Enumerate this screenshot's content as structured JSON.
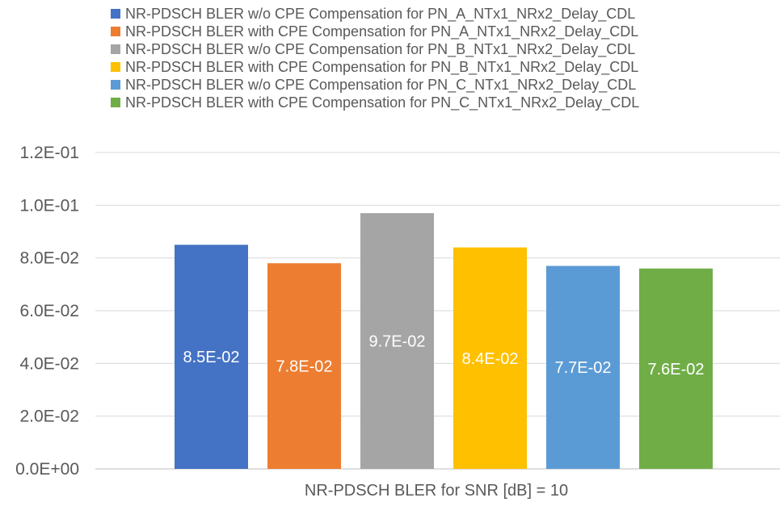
{
  "chart_data": {
    "type": "bar",
    "categories": [
      "NR-PDSCH BLER for SNR [dB] = 10"
    ],
    "series": [
      {
        "name": "NR-PDSCH BLER w/o CPE Compensation for PN_A_NTx1_NRx2_Delay_CDL",
        "values": [
          0.085
        ],
        "label": "8.5E-02",
        "color": "#4472C4"
      },
      {
        "name": "NR-PDSCH BLER with CPE Compensation for PN_A_NTx1_NRx2_Delay_CDL",
        "values": [
          0.078
        ],
        "label": "7.8E-02",
        "color": "#ED7D31"
      },
      {
        "name": "NR-PDSCH BLER w/o CPE Compensation for PN_B_NTx1_NRx2_Delay_CDL",
        "values": [
          0.097
        ],
        "label": "9.7E-02",
        "color": "#A5A5A5"
      },
      {
        "name": "NR-PDSCH BLER with CPE Compensation for PN_B_NTx1_NRx2_Delay_CDL",
        "values": [
          0.084
        ],
        "label": "8.4E-02",
        "color": "#FFC000"
      },
      {
        "name": "NR-PDSCH BLER w/o CPE Compensation for PN_C_NTx1_NRx2_Delay_CDL",
        "values": [
          0.077
        ],
        "label": "7.7E-02",
        "color": "#5B9BD5"
      },
      {
        "name": "NR-PDSCH BLER with CPE Compensation for PN_C_NTx1_NRx2_Delay_CDL",
        "values": [
          0.076
        ],
        "label": "7.6E-02",
        "color": "#70AD47"
      }
    ],
    "yticks": [
      0,
      0.02,
      0.04,
      0.06,
      0.08,
      0.1,
      0.12
    ],
    "ytick_labels": [
      "0.0E+00",
      "2.0E-02",
      "4.0E-02",
      "6.0E-02",
      "8.0E-02",
      "1.0E-01",
      "1.2E-01"
    ],
    "ylim": [
      0,
      0.12
    ],
    "grid": true,
    "legend_position": "top",
    "gridline_color": "#D9D9D9"
  }
}
